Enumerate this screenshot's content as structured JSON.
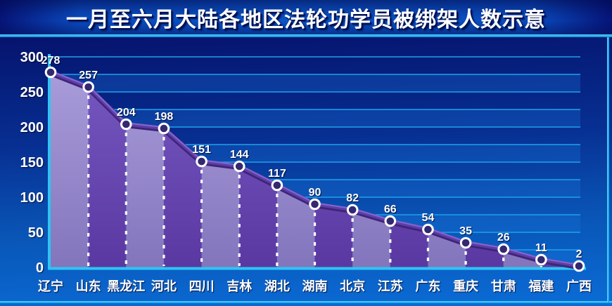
{
  "title": "一月至六月大陆各地区法轮功学员被绑架人数示意",
  "chart_data": {
    "type": "area",
    "title": "一月至六月大陆各地区法轮功学员被绑架人数示意",
    "categories": [
      "辽宁",
      "山东",
      "黑龙江",
      "河北",
      "四川",
      "吉林",
      "湖北",
      "湖南",
      "北京",
      "江苏",
      "广东",
      "重庆",
      "甘肃",
      "福建",
      "广西"
    ],
    "values": [
      278,
      257,
      204,
      198,
      151,
      144,
      117,
      90,
      82,
      66,
      54,
      35,
      26,
      11,
      2
    ],
    "xlabel": "",
    "ylabel": "",
    "ylim": [
      0,
      300
    ],
    "yticks": [
      300,
      250,
      200,
      150,
      100,
      50,
      0
    ],
    "gridline_step": 25,
    "grid": true,
    "legend": "none",
    "value_labels_shown": true
  },
  "colors": {
    "title_text": "#ffffff",
    "title_band_center": "#0b52c6",
    "title_band_edge": "#061478",
    "separator_cyan": "#2db6ec",
    "body_top": "#050a62",
    "body_bottom": "#0a6cd6",
    "gridline": "#1ea2ea",
    "band_overlay": "rgba(25,115,220,0.30)",
    "axis": "#2ec4f4",
    "area_light_top": "#a99cda",
    "area_light_bottom": "#8375bc",
    "area_dark_top": "#7658c0",
    "area_dark_bottom": "#5a38a2",
    "line_dark": "#3f2478",
    "line_mid": "#5c3ea6",
    "line_light": "#8464cc",
    "marker_fill": "#342870",
    "marker_ring": "#ffffff",
    "dash": "#ffffff",
    "label_text": "#ffffff"
  }
}
